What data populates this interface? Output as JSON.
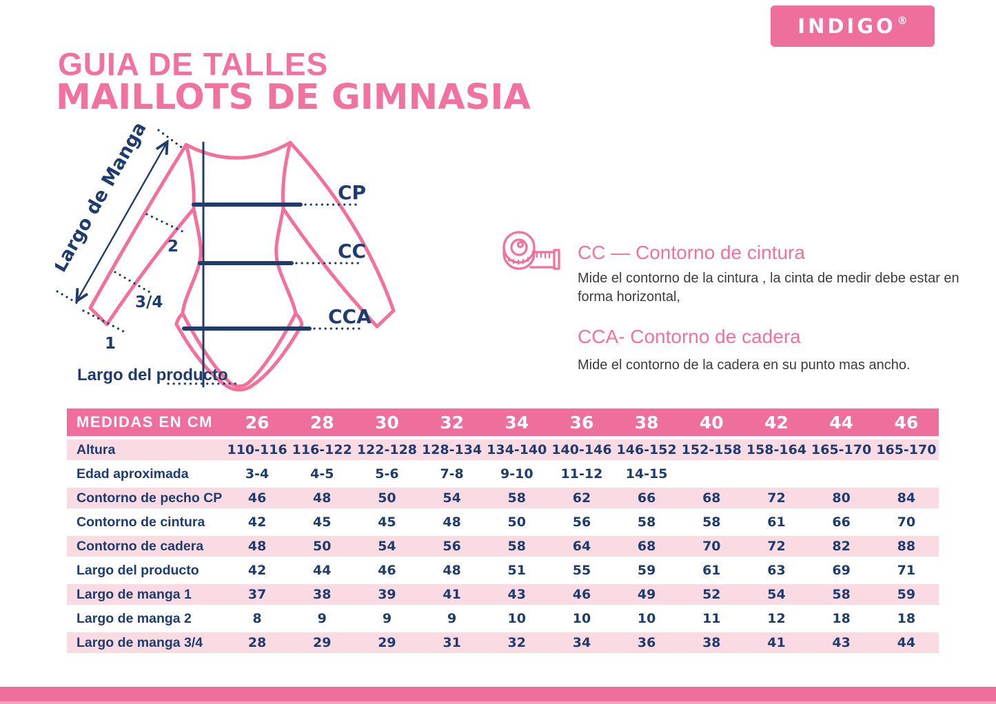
{
  "brand": {
    "logo_text": "INDIGO",
    "registered": "®"
  },
  "header": {
    "title_line1": "GUIA DE TALLES",
    "title_line2": "MAILLOTS DE GIMNASIA"
  },
  "diagram": {
    "labels": {
      "sleeve": "Largo de Manga",
      "cp": "CP",
      "cc": "CC",
      "cca": "CCA",
      "mark_2": "2",
      "mark_34": "3/4",
      "mark_1": "1",
      "product_length": "Largo del producto"
    }
  },
  "info": {
    "cc_heading": "CC — Contorno de cintura",
    "cc_body": "Mide el contorno de la cintura , la cinta de medir debe estar en\nforma horizontal,",
    "cca_heading": "CCA- Contorno de cadera",
    "cca_body": "Mide el contorno de la cadera en su punto mas ancho."
  },
  "table": {
    "header_label": "MEDIDAS EN CM",
    "sizes": [
      "26",
      "28",
      "30",
      "32",
      "34",
      "36",
      "38",
      "40",
      "42",
      "44",
      "46"
    ],
    "rows": [
      {
        "label": "Altura",
        "values": [
          "110-116",
          "116-122",
          "122-128",
          "128-134",
          "134-140",
          "140-146",
          "146-152",
          "152-158",
          "158-164",
          "165-170",
          "165-170"
        ]
      },
      {
        "label": "Edad aproximada",
        "values": [
          "3-4",
          "4-5",
          "5-6",
          "7-8",
          "9-10",
          "11-12",
          "14-15",
          "",
          "",
          "",
          ""
        ]
      },
      {
        "label": "Contorno de pecho CP",
        "values": [
          "46",
          "48",
          "50",
          "54",
          "58",
          "62",
          "66",
          "68",
          "72",
          "80",
          "84"
        ]
      },
      {
        "label": "Contorno de cintura",
        "values": [
          "42",
          "45",
          "45",
          "48",
          "50",
          "56",
          "58",
          "58",
          "61",
          "66",
          "70"
        ]
      },
      {
        "label": "Contorno de cadera",
        "values": [
          "48",
          "50",
          "54",
          "56",
          "58",
          "64",
          "68",
          "70",
          "72",
          "82",
          "88"
        ]
      },
      {
        "label": "Largo del producto",
        "values": [
          "42",
          "44",
          "46",
          "48",
          "51",
          "55",
          "59",
          "61",
          "63",
          "69",
          "71"
        ]
      },
      {
        "label": "Largo de manga 1",
        "values": [
          "37",
          "38",
          "39",
          "41",
          "43",
          "46",
          "49",
          "52",
          "54",
          "58",
          "59"
        ]
      },
      {
        "label": "Largo de manga 2",
        "values": [
          "8",
          "9",
          "9",
          "9",
          "10",
          "10",
          "10",
          "11",
          "12",
          "18",
          "18"
        ]
      },
      {
        "label": "Largo de manga 3/4",
        "values": [
          "28",
          "29",
          "29",
          "31",
          "32",
          "34",
          "36",
          "38",
          "41",
          "43",
          "44"
        ]
      }
    ]
  },
  "colors": {
    "pink": "#EE6F9B",
    "light_pink_row": "#FBDBE3",
    "navy": "#1F3C6E",
    "title_pink": "#F1729E",
    "outline_pink": "#F4709A",
    "body_text": "#3C3C3C"
  }
}
